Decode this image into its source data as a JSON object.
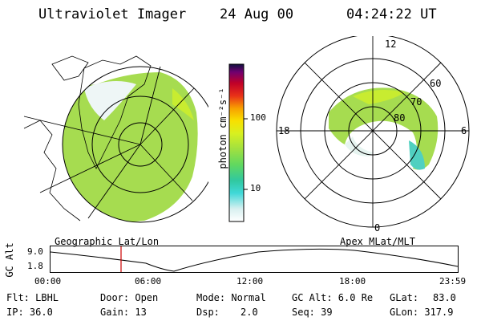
{
  "header": {
    "title": "Ultraviolet Imager",
    "date": "24 Aug 00",
    "time": "04:24:22 UT"
  },
  "left_panel": {
    "caption": "Geographic Lat/Lon"
  },
  "right_panel": {
    "caption": "Apex MLat/MLT",
    "mlt_labels": [
      "12",
      "6",
      "0",
      "18"
    ],
    "lat_labels": [
      "60",
      "70",
      "80"
    ]
  },
  "colorbar": {
    "unit_label": "photon cm⁻²s⁻¹",
    "tick_labels": [
      "100",
      "10"
    ],
    "stops": [
      "#ffffff",
      "#d8f0f0",
      "#40d8d8",
      "#30c8a0",
      "#60d860",
      "#a0e040",
      "#d8f020",
      "#f8e000",
      "#f8a000",
      "#e83018",
      "#c00028",
      "#700070",
      "#101040"
    ]
  },
  "timeline": {
    "axis_label": "GC Alt",
    "y_ticks": [
      "9.0",
      "1.8"
    ],
    "x_ticks": [
      "00:00",
      "06:00",
      "12:00",
      "18:00",
      "23:59"
    ],
    "marker_time": "04:24"
  },
  "info": {
    "filter": "Flt: LBHL",
    "ip": "IP: 36.0",
    "door": "Door: Open",
    "gain": "Gain: 13",
    "mode": "Mode: Normal",
    "dsp_label": "Dsp:",
    "dsp_value": "2.0",
    "gc_alt": "GC Alt: 6.0 Re",
    "seq": "Seq: 39",
    "glat": "GLat:",
    "glat_value": "83.0",
    "glon": "GLon: 317.9"
  },
  "colors": {
    "marker": "#cc0000",
    "aurora_green": "#9ad84a",
    "aurora_cyan": "#4fd0c0"
  }
}
